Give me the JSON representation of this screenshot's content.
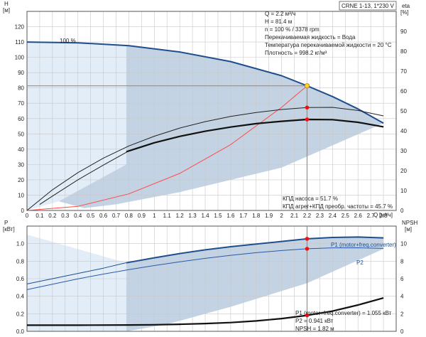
{
  "chart_data": [
    {
      "type": "line",
      "panel": "head-efficiency",
      "product_label": "CRNE 1-13, 1*230 V",
      "speed_label": "100 %",
      "xlabel": "Q",
      "xunit": "[м³/ч]",
      "ylabel_left": "H",
      "yunit_left": "[м]",
      "ylabel_right": "eta",
      "yunit_right": "[%]",
      "xlim": [
        0,
        2.9
      ],
      "ylim_left": [
        0,
        130
      ],
      "ylim_right": [
        0,
        100
      ],
      "x_ticks": [
        0,
        0.1,
        0.2,
        0.3,
        0.4,
        0.5,
        0.6,
        0.7,
        0.8,
        0.9,
        1.0,
        1.1,
        1.2,
        1.3,
        1.4,
        1.5,
        1.6,
        1.7,
        1.8,
        1.9,
        2.0,
        2.1,
        2.2,
        2.3,
        2.4,
        2.5,
        2.6,
        2.7,
        2.8
      ],
      "x_tick_labels": [
        "0",
        "0.1",
        "0.2",
        "0.3",
        "0.4",
        "0.5",
        "0.6",
        "0.7",
        "0.8",
        "0.9",
        "1",
        "1.1",
        "1.2",
        "1.3",
        "1.4",
        "1.5",
        "1.6",
        "1.7",
        "1.8",
        "1.9",
        "2",
        "2.1",
        "2.2",
        "2.3",
        "2.4",
        "2.5",
        "2.6",
        "2.7",
        "2.8"
      ],
      "y_ticks_left": [
        0,
        10,
        20,
        30,
        40,
        50,
        60,
        70,
        80,
        90,
        100,
        110,
        120
      ],
      "y_ticks_right": [
        0,
        10,
        20,
        30,
        40,
        50,
        60,
        70,
        80,
        90
      ],
      "info_lines": [
        "Q = 2.2 м³/ч",
        "H = 81.4 м",
        "n = 100 % / 3378 rpm",
        "Перекачиваемая жидкость = Вода",
        "Температура перекачиваемой жидкости = 20 °C",
        "Плотность = 998.2 кг/м³"
      ],
      "efficiency_labels": [
        "КПД насоса = 51.7 %",
        "КПД агрег+КПД преобр. частоты = 45.7 %"
      ],
      "duty_point": {
        "x": 2.2,
        "y": 81.4
      },
      "series": [
        {
          "axis": "left",
          "color": "#1f4e8c",
          "width": 2,
          "x": [
            0,
            0.4,
            0.8,
            1.2,
            1.6,
            2.0,
            2.2,
            2.4,
            2.6,
            2.8
          ],
          "y": [
            110,
            109.5,
            107.6,
            103.5,
            97.2,
            88.0,
            81.4,
            74.4,
            66.3,
            57.0
          ]
        },
        {
          "axis": "left",
          "color": "#ff4a4a",
          "width": 1,
          "x": [
            0,
            0.4,
            0.8,
            1.2,
            1.6,
            2.0,
            2.2
          ],
          "y": [
            0,
            2.7,
            10.8,
            24.2,
            43.0,
            67.3,
            81.4
          ]
        },
        {
          "axis": "right",
          "color": "#222222",
          "width": 1,
          "x": [
            0,
            0.2,
            0.4,
            0.6,
            0.8,
            1.0,
            1.2,
            1.4,
            1.6,
            1.8,
            2.0,
            2.2,
            2.4,
            2.6,
            2.8
          ],
          "y": [
            0,
            10.4,
            19.0,
            26.3,
            32.4,
            37.3,
            41.4,
            44.6,
            47.2,
            49.2,
            50.7,
            51.7,
            51.8,
            50.2,
            47.5
          ]
        },
        {
          "axis": "right",
          "color": "#111111",
          "width": 2.2,
          "x": [
            0.78,
            0.8,
            1.0,
            1.2,
            1.4,
            1.6,
            1.8,
            2.0,
            2.2,
            2.4,
            2.6,
            2.8
          ],
          "y": [
            29.5,
            29.9,
            34.0,
            37.2,
            39.8,
            41.9,
            43.6,
            44.8,
            45.7,
            45.6,
            44.3,
            42.0
          ]
        },
        {
          "axis": "right",
          "color": "#222222",
          "width": 1,
          "x": [
            0.1,
            0.2,
            0.4,
            0.6,
            0.8
          ],
          "y": [
            3.0,
            7.2,
            15.4,
            22.8,
            29.9
          ]
        }
      ],
      "markers": [
        {
          "x": 2.2,
          "y": 51.7,
          "axis": "right",
          "color": "#ee1111"
        },
        {
          "x": 2.2,
          "y": 45.7,
          "axis": "right",
          "color": "#ee1111"
        }
      ]
    },
    {
      "type": "line",
      "panel": "power-npsh",
      "ylabel_left": "P",
      "yunit_left": "[кВт]",
      "ylabel_right": "NPSH",
      "yunit_right": "[м]",
      "xlim": [
        0,
        2.9
      ],
      "ylim_left": [
        0,
        1.2
      ],
      "ylim_right": [
        0,
        12
      ],
      "y_ticks_left": [
        0,
        0.2,
        0.4,
        0.6,
        0.8,
        1.0
      ],
      "y_tick_labels_left": [
        "0.0",
        "0.2",
        "0.4",
        "0.6",
        "0.8",
        "1.0"
      ],
      "y_ticks_right": [
        0,
        2,
        4,
        6,
        8,
        10
      ],
      "series_labels": [
        "P1 (motor+freq.converter)",
        "P2"
      ],
      "info_lines": [
        "P1 (motor+freq.converter) = 1.055 кВт",
        "P2 = 0.941 кВт",
        "NPSH = 1.82 м"
      ],
      "series": [
        {
          "axis": "left",
          "color": "#1f4e8c",
          "width": 2,
          "x": [
            0.78,
            1.0,
            1.2,
            1.4,
            1.6,
            1.8,
            2.0,
            2.2,
            2.4,
            2.6,
            2.8
          ],
          "y": [
            0.781,
            0.838,
            0.887,
            0.929,
            0.965,
            0.995,
            1.025,
            1.055,
            1.07,
            1.075,
            1.065
          ]
        },
        {
          "axis": "left",
          "color": "#1f4e8c",
          "width": 1,
          "x": [
            0,
            0.2,
            0.4,
            0.6,
            0.8
          ],
          "y": [
            0.54,
            0.6,
            0.66,
            0.72,
            0.79
          ]
        },
        {
          "axis": "left",
          "color": "#2a5aa8",
          "width": 1,
          "x": [
            0,
            0.2,
            0.4,
            0.6,
            0.8,
            1.0,
            1.2,
            1.4,
            1.6,
            1.8,
            2.0,
            2.2,
            2.4,
            2.6,
            2.8
          ],
          "y": [
            0.475,
            0.537,
            0.598,
            0.653,
            0.703,
            0.75,
            0.793,
            0.832,
            0.867,
            0.897,
            0.921,
            0.941,
            0.952,
            0.953,
            0.945
          ]
        },
        {
          "axis": "right",
          "color": "#111111",
          "width": 2.2,
          "x": [
            0,
            0.4,
            0.8,
            1.0,
            1.2,
            1.4,
            1.6,
            1.8,
            2.0,
            2.2,
            2.4,
            2.6,
            2.8
          ],
          "y": [
            0.7,
            0.7,
            0.72,
            0.75,
            0.8,
            0.88,
            1.0,
            1.18,
            1.45,
            1.82,
            2.3,
            3.0,
            3.8
          ]
        }
      ],
      "markers": [
        {
          "x": 2.2,
          "y": 1.055,
          "axis": "left",
          "color": "#ee1111"
        },
        {
          "x": 2.2,
          "y": 0.941,
          "axis": "left",
          "color": "#ee1111"
        },
        {
          "x": 2.2,
          "y": 1.82,
          "axis": "right",
          "color": "#ee1111"
        }
      ]
    }
  ],
  "colors": {
    "frame": "#555555",
    "grid": "#c8c8c8",
    "region": "#c3d3e3",
    "region_light": "#e2edf8",
    "duty_line": "#909090",
    "duty_point_fill": "#ffd030"
  }
}
